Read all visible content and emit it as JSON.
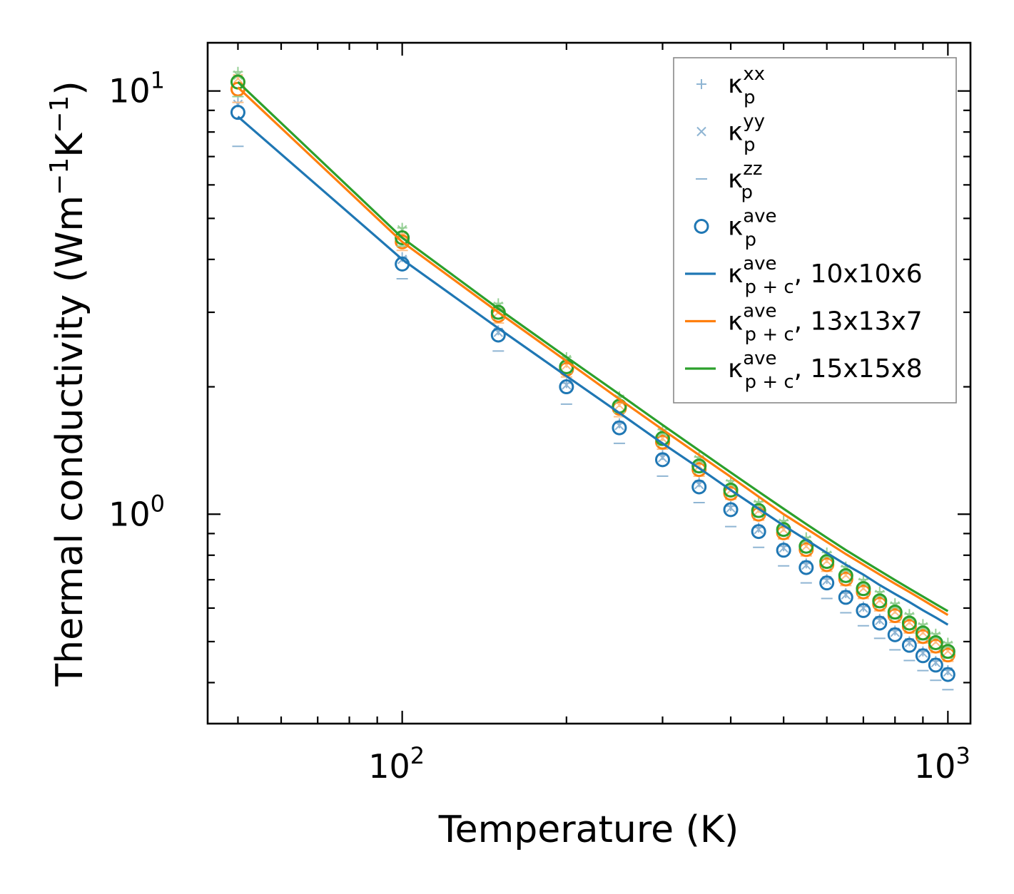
{
  "chart_data": {
    "type": "line",
    "xlabel": "Temperature (K)",
    "ylabel": "Thermal conductivity (Wm⁻¹K⁻¹)",
    "xscale": "log",
    "yscale": "log",
    "xlim": [
      44,
      1100
    ],
    "ylim": [
      0.32,
      13
    ],
    "x_tick_labels": [
      {
        "value": 100,
        "base": "10",
        "exp": "2"
      },
      {
        "value": 1000,
        "base": "10",
        "exp": "3"
      }
    ],
    "y_tick_labels": [
      {
        "value": 1,
        "base": "10",
        "exp": "0"
      },
      {
        "value": 10,
        "base": "10",
        "exp": "1"
      }
    ],
    "legend_position": "top-right",
    "x": [
      50,
      100,
      150,
      200,
      250,
      300,
      350,
      400,
      450,
      500,
      550,
      600,
      650,
      700,
      750,
      800,
      850,
      900,
      950,
      1000
    ],
    "legend": [
      {
        "key": "xx",
        "label": "κ",
        "sub": "p",
        "sup": "xx",
        "suffix": "",
        "marker": "plus",
        "color": "#8fb5d3"
      },
      {
        "key": "yy",
        "label": "κ",
        "sub": "p",
        "sup": "yy",
        "suffix": "",
        "marker": "x",
        "color": "#8fb5d3"
      },
      {
        "key": "zz",
        "label": "κ",
        "sub": "p",
        "sup": "zz",
        "suffix": "",
        "marker": "dash",
        "color": "#8fb5d3"
      },
      {
        "key": "ave",
        "label": "κ",
        "sub": "p",
        "sup": "ave",
        "suffix": "",
        "marker": "circle",
        "color": "#1f77b4"
      },
      {
        "key": "pc10",
        "label": "κ",
        "sub": "p + c",
        "sup": "ave",
        "suffix": ", 10x10x6",
        "marker": "line",
        "color": "#1f77b4"
      },
      {
        "key": "pc13",
        "label": "κ",
        "sub": "p + c",
        "sup": "ave",
        "suffix": ", 13x13x7",
        "marker": "line",
        "color": "#ff7f0e"
      },
      {
        "key": "pc15",
        "label": "κ",
        "sub": "p + c",
        "sup": "ave",
        "suffix": ", 15x15x8",
        "marker": "line",
        "color": "#2ca02c"
      }
    ],
    "series": [
      {
        "name": "κ_p^ave, 10x10x6",
        "supercell": "10x10x6",
        "color": "#1f77b4",
        "scatter": {
          "xx": [
            9.4,
            4.05,
            2.72,
            2.04,
            1.64,
            1.38,
            1.19,
            1.045,
            0.93,
            0.84,
            0.765,
            0.703,
            0.651,
            0.605,
            0.566,
            0.531,
            0.501,
            0.474,
            0.45,
            0.428
          ],
          "yy": [
            9.3,
            4.0,
            2.69,
            2.02,
            1.62,
            1.36,
            1.175,
            1.035,
            0.92,
            0.832,
            0.758,
            0.697,
            0.645,
            0.6,
            0.561,
            0.526,
            0.497,
            0.47,
            0.446,
            0.424
          ],
          "zz": [
            7.4,
            3.6,
            2.43,
            1.82,
            1.47,
            1.23,
            1.065,
            0.935,
            0.835,
            0.755,
            0.688,
            0.632,
            0.585,
            0.545,
            0.509,
            0.478,
            0.451,
            0.427,
            0.405,
            0.385
          ],
          "ave": [
            8.9,
            3.9,
            2.65,
            2.0,
            1.6,
            1.345,
            1.16,
            1.025,
            0.91,
            0.822,
            0.748,
            0.688,
            0.636,
            0.592,
            0.553,
            0.519,
            0.49,
            0.463,
            0.44,
            0.418
          ]
        },
        "line": [
          8.7,
          4.0,
          2.75,
          2.12,
          1.735,
          1.47,
          1.285,
          1.14,
          1.03,
          0.94,
          0.87,
          0.81,
          0.76,
          0.72,
          0.68,
          0.648,
          0.62,
          0.593,
          0.57,
          0.548
        ]
      },
      {
        "name": "κ_p^ave, 13x13x7",
        "supercell": "13x13x7",
        "color": "#ff7f0e",
        "scatter": {
          "xx": [
            10.9,
            4.6,
            3.05,
            2.28,
            1.84,
            1.53,
            1.32,
            1.16,
            1.035,
            0.935,
            0.855,
            0.787,
            0.73,
            0.68,
            0.636,
            0.598,
            0.564,
            0.534,
            0.508,
            0.484
          ],
          "yy": [
            10.7,
            4.55,
            3.0,
            2.25,
            1.81,
            1.51,
            1.3,
            1.14,
            1.02,
            0.92,
            0.84,
            0.775,
            0.718,
            0.668,
            0.626,
            0.588,
            0.555,
            0.525,
            0.499,
            0.475
          ],
          "zz": [
            9.4,
            4.2,
            2.83,
            2.11,
            1.7,
            1.425,
            1.23,
            1.085,
            0.968,
            0.874,
            0.797,
            0.733,
            0.678,
            0.632,
            0.591,
            0.555,
            0.524,
            0.496,
            0.471,
            0.449
          ],
          "ave": [
            10.1,
            4.4,
            2.95,
            2.2,
            1.78,
            1.48,
            1.275,
            1.12,
            1.0,
            0.904,
            0.825,
            0.76,
            0.703,
            0.655,
            0.613,
            0.576,
            0.543,
            0.514,
            0.488,
            0.465
          ]
        },
        "line": [
          10.2,
          4.4,
          3.0,
          2.3,
          1.87,
          1.585,
          1.38,
          1.225,
          1.1,
          1.0,
          0.925,
          0.86,
          0.805,
          0.76,
          0.72,
          0.685,
          0.655,
          0.627,
          0.601,
          0.578
        ]
      },
      {
        "name": "κ_p^ave, 15x15x8",
        "supercell": "15x15x8",
        "color": "#2ca02c",
        "scatter": {
          "xx": [
            11.1,
            4.75,
            3.15,
            2.35,
            1.9,
            1.585,
            1.365,
            1.2,
            1.07,
            0.966,
            0.882,
            0.812,
            0.752,
            0.701,
            0.656,
            0.616,
            0.581,
            0.55,
            0.522,
            0.497
          ],
          "yy": [
            10.9,
            4.7,
            3.1,
            2.32,
            1.87,
            1.56,
            1.345,
            1.18,
            1.055,
            0.952,
            0.869,
            0.8,
            0.741,
            0.69,
            0.646,
            0.607,
            0.573,
            0.542,
            0.515,
            0.49
          ],
          "zz": [
            9.7,
            4.3,
            2.9,
            2.16,
            1.74,
            1.455,
            1.255,
            1.105,
            0.985,
            0.89,
            0.812,
            0.747,
            0.691,
            0.644,
            0.602,
            0.566,
            0.534,
            0.505,
            0.48,
            0.457
          ],
          "ave": [
            10.5,
            4.5,
            3.0,
            2.23,
            1.8,
            1.51,
            1.3,
            1.14,
            1.02,
            0.92,
            0.84,
            0.773,
            0.716,
            0.667,
            0.624,
            0.587,
            0.553,
            0.524,
            0.497,
            0.474
          ]
        },
        "line": [
          10.5,
          4.5,
          3.06,
          2.35,
          1.92,
          1.625,
          1.415,
          1.255,
          1.13,
          1.03,
          0.948,
          0.88,
          0.823,
          0.776,
          0.735,
          0.699,
          0.667,
          0.639,
          0.613,
          0.59
        ]
      }
    ]
  }
}
